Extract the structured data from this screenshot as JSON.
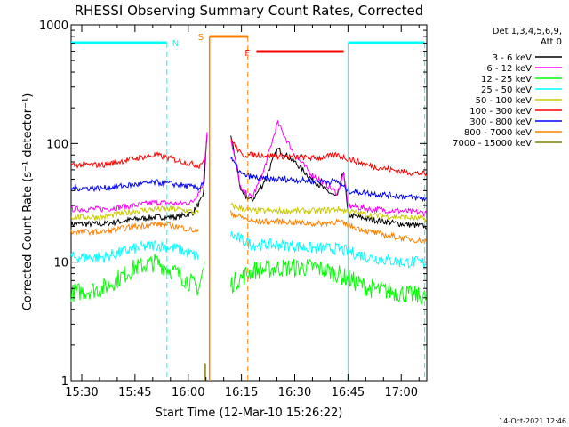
{
  "chart_data": {
    "type": "line",
    "title": "RHESSI Observing Summary Count Rates, Corrected",
    "ylabel": "Corrected Count Rate (s⁻¹ detector⁻¹)",
    "xlabel": "Start Time (12-Mar-10 15:26:22)",
    "y_scale": "log",
    "ylim": [
      1,
      1000
    ],
    "xlim_minutes": [
      15.45,
      17.12
    ],
    "x_ticks": [
      "15:30",
      "15:45",
      "16:00",
      "16:15",
      "16:30",
      "16:45",
      "17:00"
    ],
    "y_ticks": [
      "1",
      "10",
      "100",
      "1000"
    ],
    "legend_header": [
      "Det 1,3,4,5,6,9,",
      "Att 0"
    ],
    "legend_position": "right",
    "timestamp": "14-Oct-2021 12:46",
    "series": [
      {
        "name": "3 - 6 keV",
        "color": "#000000",
        "before": [
          [
            15.45,
            21
          ],
          [
            15.6,
            21
          ],
          [
            15.75,
            23
          ],
          [
            15.85,
            24
          ],
          [
            15.95,
            24
          ],
          [
            16.02,
            26
          ],
          [
            16.07,
            35
          ],
          [
            16.09,
            130
          ]
        ],
        "after": [
          [
            16.2,
            120
          ],
          [
            16.25,
            38
          ],
          [
            16.3,
            33
          ],
          [
            16.35,
            45
          ],
          [
            16.42,
            90
          ],
          [
            16.5,
            70
          ],
          [
            16.58,
            50
          ],
          [
            16.65,
            40
          ],
          [
            16.7,
            35
          ],
          [
            16.73,
            60
          ],
          [
            16.75,
            25
          ],
          [
            16.85,
            23
          ],
          [
            17.0,
            21
          ],
          [
            17.12,
            20
          ]
        ]
      },
      {
        "name": "6 - 12 keV",
        "color": "#ff00ff",
        "before": [
          [
            15.45,
            28
          ],
          [
            15.6,
            28
          ],
          [
            15.75,
            30
          ],
          [
            15.85,
            32
          ],
          [
            15.95,
            31
          ],
          [
            16.02,
            32
          ],
          [
            16.07,
            45
          ],
          [
            16.09,
            140
          ]
        ],
        "after": [
          [
            16.2,
            110
          ],
          [
            16.25,
            40
          ],
          [
            16.3,
            35
          ],
          [
            16.35,
            55
          ],
          [
            16.42,
            150
          ],
          [
            16.5,
            80
          ],
          [
            16.58,
            55
          ],
          [
            16.65,
            45
          ],
          [
            16.7,
            38
          ],
          [
            16.73,
            55
          ],
          [
            16.75,
            30
          ],
          [
            16.85,
            28
          ],
          [
            17.0,
            27
          ],
          [
            17.12,
            26
          ]
        ]
      },
      {
        "name": "12 - 25 keV",
        "color": "#00ff00",
        "before": [
          [
            15.45,
            5.5
          ],
          [
            15.6,
            6
          ],
          [
            15.75,
            9
          ],
          [
            15.85,
            10
          ],
          [
            15.95,
            8
          ],
          [
            16.05,
            6
          ],
          [
            16.08,
            10
          ]
        ],
        "after": [
          [
            16.2,
            6.5
          ],
          [
            16.3,
            8.5
          ],
          [
            16.45,
            9
          ],
          [
            16.6,
            9
          ],
          [
            16.7,
            8
          ],
          [
            16.85,
            6
          ],
          [
            17.0,
            5.5
          ],
          [
            17.12,
            5
          ]
        ]
      },
      {
        "name": "25 - 50 keV",
        "color": "#00ffff",
        "before": [
          [
            15.45,
            11
          ],
          [
            15.6,
            11
          ],
          [
            15.75,
            13
          ],
          [
            15.85,
            14
          ],
          [
            15.95,
            13
          ],
          [
            16.05,
            11
          ]
        ],
        "after": [
          [
            16.2,
            17
          ],
          [
            16.3,
            14
          ],
          [
            16.45,
            14
          ],
          [
            16.6,
            13
          ],
          [
            16.7,
            13
          ],
          [
            16.85,
            11
          ],
          [
            17.0,
            10
          ],
          [
            17.12,
            10
          ]
        ]
      },
      {
        "name": "50 - 100 keV",
        "color": "#c8c800",
        "before": [
          [
            15.45,
            24
          ],
          [
            15.6,
            24
          ],
          [
            15.75,
            27
          ],
          [
            15.85,
            28
          ],
          [
            15.95,
            28
          ],
          [
            16.05,
            26
          ]
        ],
        "after": [
          [
            16.2,
            30
          ],
          [
            16.3,
            27
          ],
          [
            16.45,
            27
          ],
          [
            16.6,
            27
          ],
          [
            16.7,
            28
          ],
          [
            16.85,
            25
          ],
          [
            17.0,
            24
          ],
          [
            17.12,
            23
          ]
        ]
      },
      {
        "name": "100 - 300 keV",
        "color": "#ff0000",
        "before": [
          [
            15.45,
            66
          ],
          [
            15.6,
            66
          ],
          [
            15.75,
            75
          ],
          [
            15.85,
            80
          ],
          [
            15.95,
            72
          ],
          [
            16.05,
            65
          ],
          [
            16.08,
            75
          ]
        ],
        "after": [
          [
            16.2,
            110
          ],
          [
            16.25,
            80
          ],
          [
            16.35,
            80
          ],
          [
            16.45,
            78
          ],
          [
            16.6,
            75
          ],
          [
            16.7,
            80
          ],
          [
            16.85,
            65
          ],
          [
            17.0,
            58
          ],
          [
            17.12,
            55
          ]
        ]
      },
      {
        "name": "300 - 800 keV",
        "color": "#0000ff",
        "before": [
          [
            15.45,
            42
          ],
          [
            15.6,
            42
          ],
          [
            15.75,
            45
          ],
          [
            15.85,
            47
          ],
          [
            15.95,
            45
          ],
          [
            16.05,
            42
          ],
          [
            16.08,
            50
          ]
        ],
        "after": [
          [
            16.2,
            75
          ],
          [
            16.25,
            55
          ],
          [
            16.35,
            50
          ],
          [
            16.45,
            50
          ],
          [
            16.6,
            48
          ],
          [
            16.7,
            48
          ],
          [
            16.75,
            40
          ],
          [
            16.85,
            38
          ],
          [
            17.0,
            36
          ],
          [
            17.12,
            34
          ]
        ]
      },
      {
        "name": "800 - 7000 keV",
        "color": "#ff8000",
        "before": [
          [
            15.45,
            18
          ],
          [
            15.6,
            18
          ],
          [
            15.75,
            20
          ],
          [
            15.85,
            21
          ],
          [
            15.95,
            20
          ],
          [
            16.05,
            18
          ]
        ],
        "after": [
          [
            16.2,
            26
          ],
          [
            16.3,
            22
          ],
          [
            16.45,
            22
          ],
          [
            16.6,
            21
          ],
          [
            16.7,
            22
          ],
          [
            16.85,
            18
          ],
          [
            17.0,
            16
          ],
          [
            17.12,
            15
          ]
        ]
      },
      {
        "name": "7000 - 15000 keV",
        "color": "#808000",
        "before": [],
        "after": []
      }
    ],
    "annotations": [
      {
        "label": "N",
        "color": "#00ffff",
        "type": "night",
        "start": 15.45,
        "end": 15.9,
        "dashed_at": 15.9
      },
      {
        "label": "S",
        "color": "#ff8000",
        "type": "saa",
        "start": 16.1,
        "end": 16.28,
        "dashed_at": 16.28
      },
      {
        "label": "F",
        "color": "#ff0000",
        "type": "flare",
        "start": 16.32,
        "end": 16.73
      },
      {
        "label": "",
        "color": "#00ffff",
        "type": "night",
        "start": 16.75,
        "end": 17.11,
        "dashed_at": 17.11
      }
    ]
  }
}
